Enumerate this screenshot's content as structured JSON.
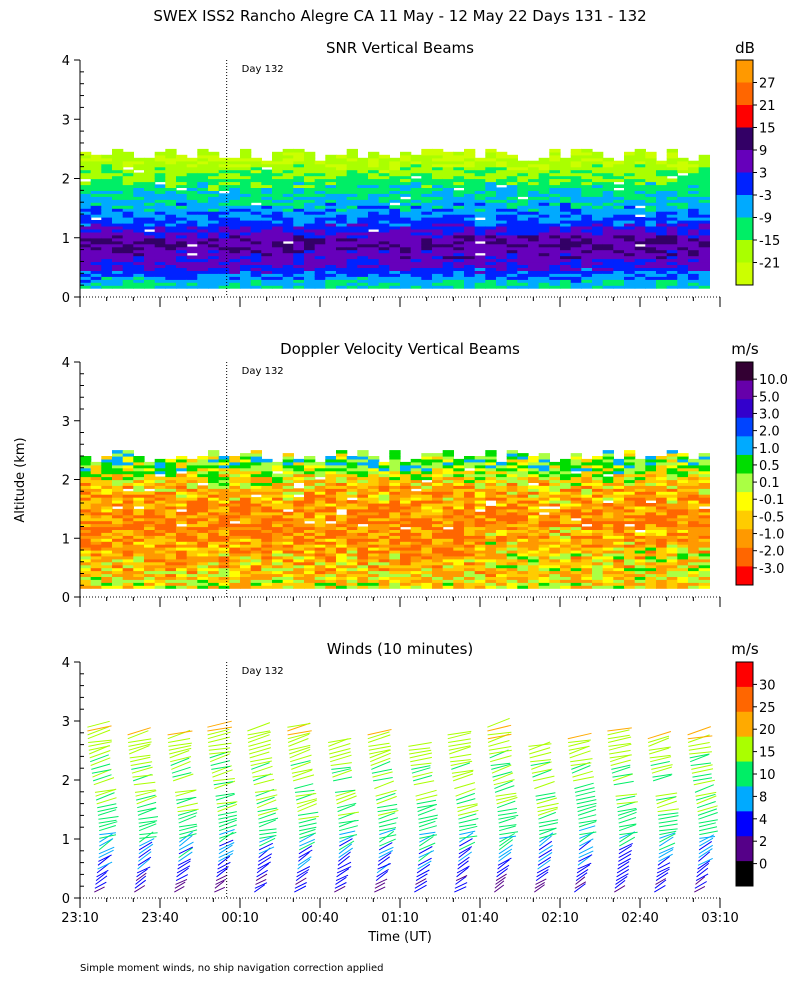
{
  "figure": {
    "title": "SWEX ISS2 Rancho Alegre CA  11 May - 12 May 22 Days 131 - 132",
    "ylabel": "Altitude (km)",
    "xlabel": "Time (UT)",
    "footnote": "Simple moment winds, no ship navigation correction applied",
    "day_marker_label": "Day 132",
    "day_marker_time_min": 55
  },
  "chart_data": [
    {
      "type": "heatmap",
      "title": "SNR Vertical Beams",
      "unit": "dB",
      "ylim": [
        0,
        4
      ],
      "yticks": [
        "0",
        "1",
        "2",
        "3",
        "4"
      ],
      "xlim_min": [
        0,
        240
      ],
      "colorbar": {
        "labels": [
          "27",
          "21",
          "15",
          "9",
          "3",
          "-3",
          "-9",
          "-15",
          "-21"
        ],
        "colors": [
          "#ff9900",
          "#ff6600",
          "#ff0000",
          "#330066",
          "#6600bb",
          "#0022ff",
          "#00aaff",
          "#00ee66",
          "#aaff00",
          "#ccff00"
        ]
      },
      "profile": [
        {
          "alt_km": 0.2,
          "snr_db": -9
        },
        {
          "alt_km": 0.5,
          "snr_db": 3
        },
        {
          "alt_km": 0.9,
          "snr_db": 9
        },
        {
          "alt_km": 1.3,
          "snr_db": -3
        },
        {
          "alt_km": 1.7,
          "snr_db": -9
        },
        {
          "alt_km": 2.0,
          "snr_db": -15
        },
        {
          "alt_km": 2.3,
          "snr_db": -21
        }
      ]
    },
    {
      "type": "heatmap",
      "title": "Doppler Velocity Vertical Beams",
      "unit": "m/s",
      "ylim": [
        0,
        4
      ],
      "yticks": [
        "0",
        "1",
        "2",
        "3",
        "4"
      ],
      "xlim_min": [
        0,
        240
      ],
      "colorbar": {
        "labels": [
          "10.0",
          "5.0",
          "3.0",
          "2.0",
          "1.0",
          "0.5",
          "0.1",
          "-0.1",
          "-0.5",
          "-1.0",
          "-2.0",
          "-3.0"
        ],
        "colors": [
          "#330033",
          "#6600aa",
          "#3300cc",
          "#0044ff",
          "#00aaff",
          "#00dd00",
          "#aaff44",
          "#ffff00",
          "#ffcc00",
          "#ff9900",
          "#ff6600",
          "#ff0000"
        ]
      },
      "profile": [
        {
          "alt_km": 0.2,
          "w_ms": -0.1
        },
        {
          "alt_km": 0.6,
          "w_ms": -0.5
        },
        {
          "alt_km": 1.2,
          "w_ms": -1.0
        },
        {
          "alt_km": 1.8,
          "w_ms": -0.5
        },
        {
          "alt_km": 2.2,
          "w_ms": 0.5
        }
      ]
    },
    {
      "type": "scatter",
      "title": "Winds (10 minutes)",
      "unit": "m/s",
      "ylim": [
        0,
        4
      ],
      "yticks": [
        "0",
        "1",
        "2",
        "3",
        "4"
      ],
      "xlim_min": [
        0,
        240
      ],
      "xticks": [
        "23:10",
        "23:40",
        "00:10",
        "00:40",
        "01:10",
        "01:40",
        "02:10",
        "02:40",
        "03:10"
      ],
      "colorbar": {
        "labels": [
          "30",
          "25",
          "20",
          "15",
          "10",
          "8",
          "4",
          "2",
          "0"
        ],
        "colors": [
          "#ff0000",
          "#ff6600",
          "#ffaa00",
          "#aaff00",
          "#00ee66",
          "#00aaff",
          "#0000ff",
          "#550088",
          "#000000"
        ]
      },
      "profile_times_min": [
        5,
        20,
        35,
        50,
        65,
        80,
        95,
        110,
        125,
        140,
        155,
        170,
        185,
        200,
        215,
        230
      ],
      "speed_profile": [
        {
          "alt_km": 0.2,
          "speed_ms": 4
        },
        {
          "alt_km": 0.6,
          "speed_ms": 8
        },
        {
          "alt_km": 1.0,
          "speed_ms": 10
        },
        {
          "alt_km": 1.5,
          "speed_ms": 15
        },
        {
          "alt_km": 2.2,
          "speed_ms": 15
        },
        {
          "alt_km": 2.8,
          "speed_ms": 20
        }
      ]
    }
  ]
}
